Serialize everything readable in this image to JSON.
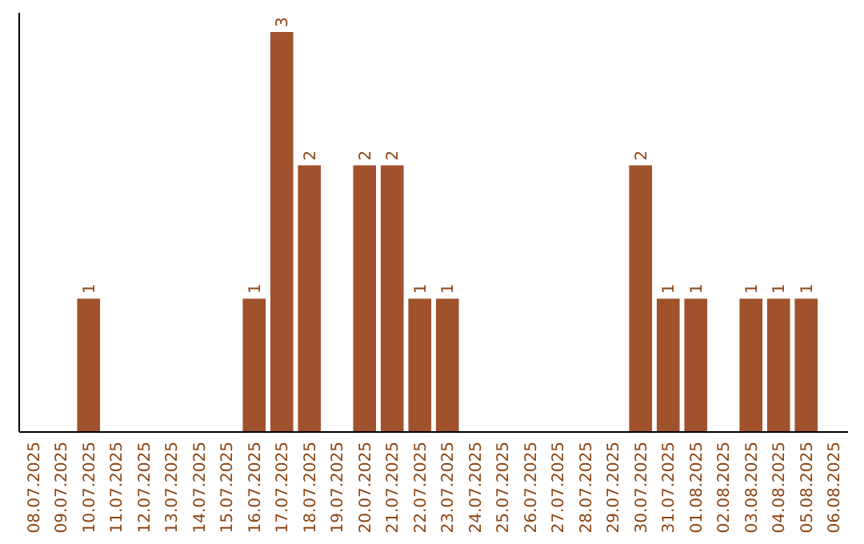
{
  "chart_data": {
    "type": "bar",
    "categories": [
      "08.07.2025",
      "09.07.2025",
      "10.07.2025",
      "11.07.2025",
      "12.07.2025",
      "13.07.2025",
      "14.07.2025",
      "15.07.2025",
      "16.07.2025",
      "17.07.2025",
      "18.07.2025",
      "19.07.2025",
      "20.07.2025",
      "21.07.2025",
      "22.07.2025",
      "23.07.2025",
      "24.07.2025",
      "25.07.2025",
      "26.07.2025",
      "27.07.2025",
      "28.07.2025",
      "29.07.2025",
      "30.07.2025",
      "31.07.2025",
      "01.08.2025",
      "02.08.2025",
      "03.08.2025",
      "04.08.2025",
      "05.08.2025",
      "06.08.2025"
    ],
    "values": [
      0,
      0,
      1,
      0,
      0,
      0,
      0,
      0,
      1,
      3,
      2,
      0,
      2,
      2,
      1,
      1,
      0,
      0,
      0,
      0,
      0,
      0,
      2,
      1,
      1,
      0,
      1,
      1,
      1,
      0
    ],
    "value_labels": [
      null,
      null,
      "1",
      null,
      null,
      null,
      null,
      null,
      "1",
      "3",
      "2",
      null,
      "2",
      "2",
      "1",
      "1",
      null,
      null,
      null,
      null,
      null,
      null,
      "2",
      "1",
      "1",
      null,
      "1",
      "1",
      "1",
      null
    ],
    "color": "#a0522d",
    "ylim": [
      0,
      3
    ],
    "tick_labels": "x"
  }
}
